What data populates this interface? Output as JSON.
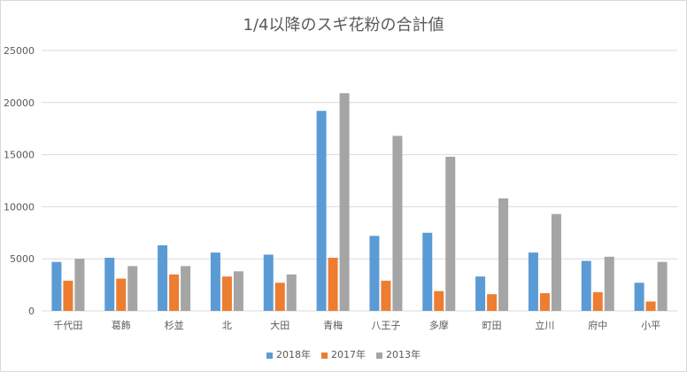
{
  "chart_data": {
    "type": "bar",
    "title": "1/4以降のスギ花粉の合計値",
    "xlabel": "",
    "ylabel": "",
    "ylim": [
      0,
      25000
    ],
    "yticks": [
      0,
      5000,
      10000,
      15000,
      20000,
      25000
    ],
    "grid": true,
    "legend_position": "bottom",
    "categories": [
      "千代田",
      "葛飾",
      "杉並",
      "北",
      "大田",
      "青梅",
      "八王子",
      "多摩",
      "町田",
      "立川",
      "府中",
      "小平"
    ],
    "series": [
      {
        "name": "2018年",
        "color": "#5b9bd5",
        "values": [
          4700,
          5100,
          6300,
          5600,
          5400,
          19200,
          7200,
          7500,
          3300,
          5600,
          4800,
          2700
        ]
      },
      {
        "name": "2017年",
        "color": "#ed7d31",
        "values": [
          2900,
          3100,
          3500,
          3300,
          2700,
          5100,
          2900,
          1900,
          1600,
          1700,
          1800,
          900
        ]
      },
      {
        "name": "2013年",
        "color": "#a5a5a5",
        "values": [
          5000,
          4300,
          4300,
          3800,
          3500,
          20900,
          16800,
          14800,
          10800,
          9300,
          5200,
          4700
        ]
      }
    ]
  }
}
